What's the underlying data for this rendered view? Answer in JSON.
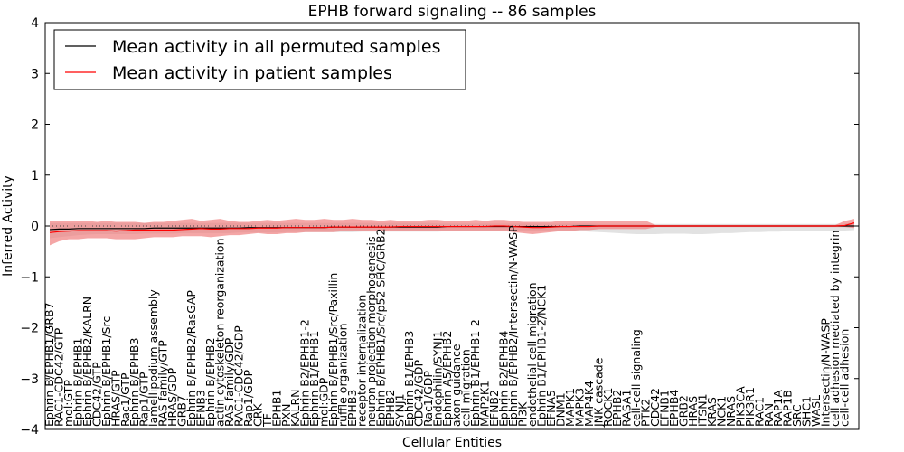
{
  "chart_data": {
    "type": "line",
    "title": "EPHB forward signaling -- 86 samples",
    "xlabel": "Cellular Entities",
    "ylabel": "Inferred Activity",
    "ylim": [
      -4,
      4
    ],
    "yticks": [
      -4,
      -3,
      -2,
      -1,
      0,
      1,
      2,
      3,
      4
    ],
    "ytick_labels": [
      "−4",
      "−3",
      "−2",
      "−1",
      "0",
      "1",
      "2",
      "3",
      "4"
    ],
    "grid": false,
    "legend_position": "top-left",
    "reference_line": 0,
    "categories": [
      "Ephrin B/EPHB1/GRB7",
      "RAC1-CDC42/GTP",
      "mol:GTP",
      "Ephrin B/EPHB1",
      "Ephrin B/EPHB2/KALRN",
      "CDC42/GTP",
      "Ephrin B/EPHB1/Src",
      "HRAS/GTP",
      "Rac1/GTP",
      "Ephrin B/EPHB3",
      "Rap1/GTP",
      "lamellipodium assembly",
      "RAS family/GTP",
      "HRAS/GDP",
      "GRB7",
      "Ephrin B/EPHB2/RasGAP",
      "EFNB3",
      "Ephrin B/EPHB2",
      "actin cytoskeleton reorganization",
      "RAS family/GDP",
      "RAC1-CDC42/GDP",
      "Rap1/GDP",
      "CRK",
      "TF",
      "EPHB1",
      "PXN",
      "KALRN",
      "Ephrin B2/EPHB1-2",
      "Ephrin B1/EPHB1",
      "mol:GDP",
      "Ephrin B/EPHB1/Src/Paxillin",
      "ruffle organization",
      "EPHB3",
      "receptor internalization",
      "neuron projection morphogenesis",
      "Ephrin B/EPHB1/Src/p52 SHC/GRB2",
      "EPHB2",
      "SYNJ1",
      "Ephrin B1/EPHB3",
      "CDC42/GDP",
      "Rac1/GDP",
      "Endophilin/SYNJ1",
      "Ephrin A5/EPHB2",
      "axon guidance",
      "cell migration",
      "Ephrin B1/EPHB1-2",
      "MAP2K1",
      "EFNB2",
      "Ephrin B2/EPHB4",
      "Ephrin B/EPHB2/Intersectin/N-WASP",
      "PI3K",
      "endothelial cell migration",
      "Ephrin B1/EPHB1-2/NCK1",
      "EFNA5",
      "DNM1",
      "MAPK1",
      "MAPK3",
      "MAP4K4",
      "JNK cascade",
      "ROCK1",
      "EPHB2",
      "RASA1",
      "cell-cell signaling",
      "PTK2",
      "CDC42",
      "EFNB1",
      "EPHB4",
      "GRB2",
      "HRAS",
      "ITSN1",
      "KRAS",
      "NCK1",
      "NRAS",
      "PIK3CA",
      "PIK3R1",
      "RAC1",
      "RAN",
      "RAP1A",
      "RAP1B",
      "SRC",
      "SHC1",
      "WASL",
      "Intersectin/N-WASP",
      "cell adhesion mediated by integrin",
      "cell-cell adhesion",
      ""
    ],
    "series": [
      {
        "name": "Mean activity in all permuted samples",
        "color": "#000000",
        "band_color": "#d8d8d8",
        "values": [
          -0.07,
          -0.06,
          -0.06,
          -0.05,
          -0.05,
          -0.05,
          -0.05,
          -0.05,
          -0.05,
          -0.05,
          -0.05,
          -0.04,
          -0.04,
          -0.04,
          -0.04,
          -0.04,
          -0.04,
          -0.04,
          -0.04,
          -0.04,
          -0.04,
          -0.03,
          -0.03,
          -0.03,
          -0.03,
          -0.03,
          -0.03,
          -0.03,
          -0.03,
          -0.03,
          -0.02,
          -0.02,
          -0.02,
          -0.02,
          -0.02,
          -0.02,
          -0.02,
          -0.02,
          -0.02,
          -0.02,
          -0.02,
          -0.02,
          -0.01,
          -0.01,
          -0.01,
          -0.01,
          -0.01,
          -0.01,
          -0.01,
          -0.01,
          -0.01,
          -0.01,
          -0.01,
          -0.01,
          -0.01,
          -0.01,
          0.0,
          0.0,
          0.0,
          0.0,
          0.0,
          0.0,
          0.0,
          0.0,
          0.0,
          0.0,
          0.0,
          0.0,
          0.0,
          0.0,
          0.0,
          0.0,
          0.0,
          0.0,
          0.0,
          0.0,
          0.0,
          0.0,
          0.0,
          0.0,
          0.0,
          0.0,
          0.0,
          0.0,
          0.0,
          0.0
        ],
        "upper": [
          0.06,
          0.06,
          0.06,
          0.06,
          0.06,
          0.06,
          0.06,
          0.06,
          0.06,
          0.06,
          0.06,
          0.06,
          0.06,
          0.06,
          0.06,
          0.06,
          0.06,
          0.06,
          0.06,
          0.06,
          0.06,
          0.06,
          0.06,
          0.06,
          0.06,
          0.06,
          0.06,
          0.06,
          0.06,
          0.06,
          0.06,
          0.06,
          0.06,
          0.06,
          0.06,
          0.06,
          0.06,
          0.06,
          0.06,
          0.06,
          0.06,
          0.05,
          0.05,
          0.05,
          0.05,
          0.05,
          0.05,
          0.05,
          0.05,
          0.05,
          0.05,
          0.05,
          0.05,
          0.05,
          0.05,
          0.05,
          0.05,
          0.05,
          0.04,
          0.04,
          0.04,
          0.04,
          0.04,
          0.04,
          0.04,
          0.04,
          0.04,
          0.04,
          0.04,
          0.04,
          0.04,
          0.04,
          0.04,
          0.04,
          0.04,
          0.04,
          0.04,
          0.04,
          0.04,
          0.04,
          0.04,
          0.04,
          0.04,
          0.04,
          0.05,
          0.06
        ],
        "lower": [
          -0.24,
          -0.22,
          -0.2,
          -0.18,
          -0.17,
          -0.16,
          -0.16,
          -0.16,
          -0.16,
          -0.16,
          -0.15,
          -0.15,
          -0.15,
          -0.15,
          -0.14,
          -0.14,
          -0.14,
          -0.14,
          -0.14,
          -0.14,
          -0.13,
          -0.13,
          -0.13,
          -0.13,
          -0.13,
          -0.12,
          -0.12,
          -0.12,
          -0.12,
          -0.12,
          -0.12,
          -0.12,
          -0.12,
          -0.11,
          -0.11,
          -0.11,
          -0.11,
          -0.11,
          -0.11,
          -0.11,
          -0.11,
          -0.11,
          -0.1,
          -0.1,
          -0.1,
          -0.1,
          -0.1,
          -0.1,
          -0.1,
          -0.1,
          -0.1,
          -0.1,
          -0.1,
          -0.1,
          -0.1,
          -0.1,
          -0.1,
          -0.11,
          -0.12,
          -0.13,
          -0.14,
          -0.15,
          -0.16,
          -0.16,
          -0.16,
          -0.15,
          -0.15,
          -0.15,
          -0.16,
          -0.16,
          -0.15,
          -0.14,
          -0.14,
          -0.13,
          -0.12,
          -0.12,
          -0.11,
          -0.11,
          -0.1,
          -0.1,
          -0.1,
          -0.1,
          -0.1,
          -0.1,
          -0.09,
          -0.08
        ]
      },
      {
        "name": "Mean activity in patient samples",
        "color": "#ff0000",
        "band_color": "#f08080",
        "values": [
          -0.13,
          -0.11,
          -0.1,
          -0.09,
          -0.09,
          -0.09,
          -0.09,
          -0.1,
          -0.09,
          -0.08,
          -0.08,
          -0.08,
          -0.08,
          -0.08,
          -0.07,
          -0.06,
          -0.05,
          -0.06,
          -0.06,
          -0.05,
          -0.05,
          -0.05,
          -0.04,
          -0.04,
          -0.04,
          -0.03,
          -0.03,
          -0.03,
          -0.03,
          -0.03,
          -0.02,
          -0.02,
          -0.02,
          -0.02,
          -0.02,
          -0.02,
          -0.02,
          -0.01,
          -0.01,
          -0.01,
          -0.01,
          -0.01,
          -0.01,
          -0.01,
          -0.01,
          -0.01,
          -0.01,
          0.0,
          0.0,
          -0.01,
          -0.02,
          -0.03,
          -0.03,
          -0.02,
          -0.01,
          -0.01,
          -0.01,
          -0.01,
          0.0,
          0.0,
          0.0,
          0.0,
          0.0,
          0.0,
          0.0,
          0.0,
          0.0,
          0.0,
          0.0,
          0.0,
          0.0,
          0.0,
          0.0,
          0.0,
          0.0,
          0.0,
          0.0,
          0.0,
          0.0,
          0.0,
          0.0,
          0.0,
          0.0,
          0.0,
          0.01,
          0.06
        ],
        "upper": [
          0.1,
          0.1,
          0.1,
          0.1,
          0.1,
          0.08,
          0.1,
          0.08,
          0.08,
          0.08,
          0.06,
          0.08,
          0.08,
          0.1,
          0.12,
          0.14,
          0.1,
          0.12,
          0.14,
          0.1,
          0.08,
          0.08,
          0.1,
          0.12,
          0.1,
          0.12,
          0.14,
          0.12,
          0.12,
          0.14,
          0.12,
          0.12,
          0.14,
          0.12,
          0.12,
          0.1,
          0.12,
          0.1,
          0.1,
          0.1,
          0.12,
          0.12,
          0.1,
          0.1,
          0.1,
          0.12,
          0.1,
          0.12,
          0.12,
          0.1,
          0.08,
          0.08,
          0.08,
          0.08,
          0.1,
          0.1,
          0.1,
          0.1,
          0.1,
          0.1,
          0.1,
          0.1,
          0.1,
          0.1,
          0.02,
          0.02,
          0.02,
          0.02,
          0.02,
          0.02,
          0.02,
          0.02,
          0.02,
          0.02,
          0.02,
          0.02,
          0.02,
          0.02,
          0.02,
          0.02,
          0.02,
          0.02,
          0.02,
          0.02,
          0.1,
          0.14
        ],
        "lower": [
          -0.38,
          -0.3,
          -0.26,
          -0.26,
          -0.24,
          -0.24,
          -0.24,
          -0.26,
          -0.26,
          -0.26,
          -0.24,
          -0.22,
          -0.22,
          -0.22,
          -0.2,
          -0.2,
          -0.2,
          -0.22,
          -0.2,
          -0.18,
          -0.18,
          -0.16,
          -0.14,
          -0.16,
          -0.16,
          -0.14,
          -0.14,
          -0.12,
          -0.12,
          -0.12,
          -0.12,
          -0.1,
          -0.1,
          -0.1,
          -0.1,
          -0.1,
          -0.1,
          -0.1,
          -0.1,
          -0.1,
          -0.1,
          -0.1,
          -0.1,
          -0.1,
          -0.1,
          -0.1,
          -0.1,
          -0.1,
          -0.1,
          -0.12,
          -0.14,
          -0.16,
          -0.14,
          -0.12,
          -0.1,
          -0.1,
          -0.08,
          -0.08,
          -0.06,
          -0.06,
          -0.06,
          -0.06,
          -0.06,
          -0.06,
          -0.02,
          -0.02,
          -0.02,
          -0.02,
          -0.02,
          -0.02,
          -0.02,
          -0.02,
          -0.02,
          -0.02,
          -0.02,
          -0.02,
          -0.02,
          -0.02,
          -0.02,
          -0.02,
          -0.02,
          -0.02,
          -0.02,
          -0.02,
          -0.02,
          -0.04
        ]
      }
    ]
  }
}
